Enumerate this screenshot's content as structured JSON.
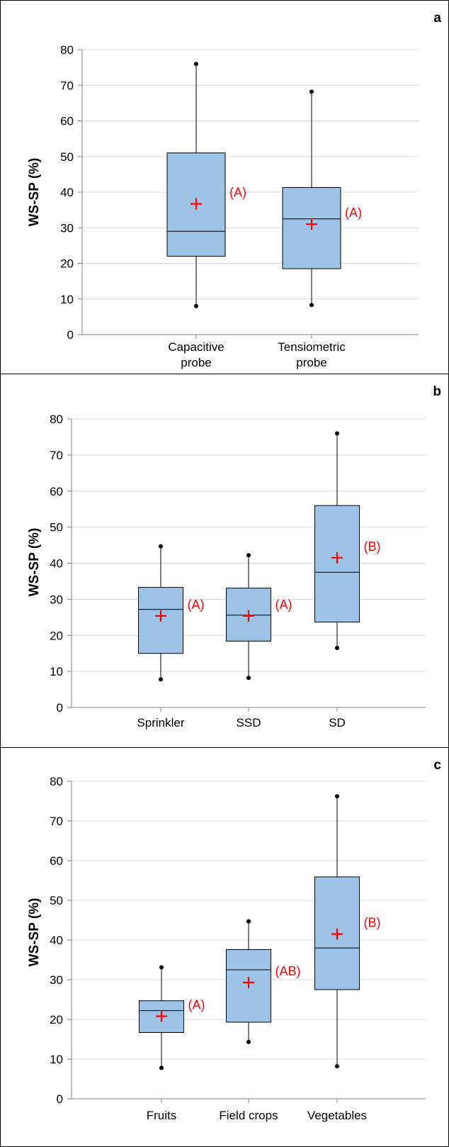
{
  "chart_data": [
    {
      "panel": "a",
      "type": "box",
      "ylabel": "WS-SP (%)",
      "ylim": [
        0,
        80
      ],
      "yticks": [
        0,
        10,
        20,
        30,
        40,
        50,
        60,
        70,
        80
      ],
      "grid": true,
      "categories": [
        {
          "lines": [
            "Capacitive",
            "probe"
          ],
          "min": 8,
          "q1": 22,
          "median": 29,
          "q3": 51,
          "max": 76,
          "mean": 36.7,
          "group": "(A)"
        },
        {
          "lines": [
            "Tensiometric",
            "probe"
          ],
          "min": 8.3,
          "q1": 18.5,
          "median": 32.5,
          "q3": 41.3,
          "max": 68.2,
          "mean": 31,
          "group": "(A)"
        }
      ]
    },
    {
      "panel": "b",
      "type": "box",
      "ylabel": "WS-SP (%)",
      "ylim": [
        0,
        80
      ],
      "yticks": [
        0,
        10,
        20,
        30,
        40,
        50,
        60,
        70,
        80
      ],
      "grid": true,
      "categories": [
        {
          "lines": [
            "Sprinkler"
          ],
          "min": 7.8,
          "q1": 15,
          "median": 27.2,
          "q3": 33.3,
          "max": 44.7,
          "mean": 25.4,
          "group": "(A)"
        },
        {
          "lines": [
            "SSD"
          ],
          "min": 8.2,
          "q1": 18.4,
          "median": 25.6,
          "q3": 33.1,
          "max": 42.2,
          "mean": 25.4,
          "group": "(A)"
        },
        {
          "lines": [
            "SD"
          ],
          "min": 16.5,
          "q1": 23.7,
          "median": 37.5,
          "q3": 56,
          "max": 76,
          "mean": 41.5,
          "group": "(B)"
        }
      ]
    },
    {
      "panel": "c",
      "type": "box",
      "ylabel": "WS-SP (%)",
      "ylim": [
        0,
        80
      ],
      "yticks": [
        0,
        10,
        20,
        30,
        40,
        50,
        60,
        70,
        80
      ],
      "grid": true,
      "categories": [
        {
          "lines": [
            "Fruits"
          ],
          "min": 7.8,
          "q1": 16.7,
          "median": 22.2,
          "q3": 24.7,
          "max": 33.1,
          "mean": 20.8,
          "group": "(A)"
        },
        {
          "lines": [
            "Field crops"
          ],
          "min": 14.3,
          "q1": 19.3,
          "median": 32.5,
          "q3": 37.6,
          "max": 44.7,
          "mean": 29.3,
          "group": "(AB)"
        },
        {
          "lines": [
            "Vegetables"
          ],
          "min": 8.2,
          "q1": 27.5,
          "median": 38,
          "q3": 55.9,
          "max": 76.2,
          "mean": 41.5,
          "group": "(B)"
        }
      ]
    }
  ],
  "colors": {
    "box_fill": "#9dc3e6",
    "box_stroke": "#000000",
    "grid": "#d9d9d9",
    "mean_marker": "#ff0000",
    "group_label": "#ff0000",
    "text": "#000000"
  }
}
